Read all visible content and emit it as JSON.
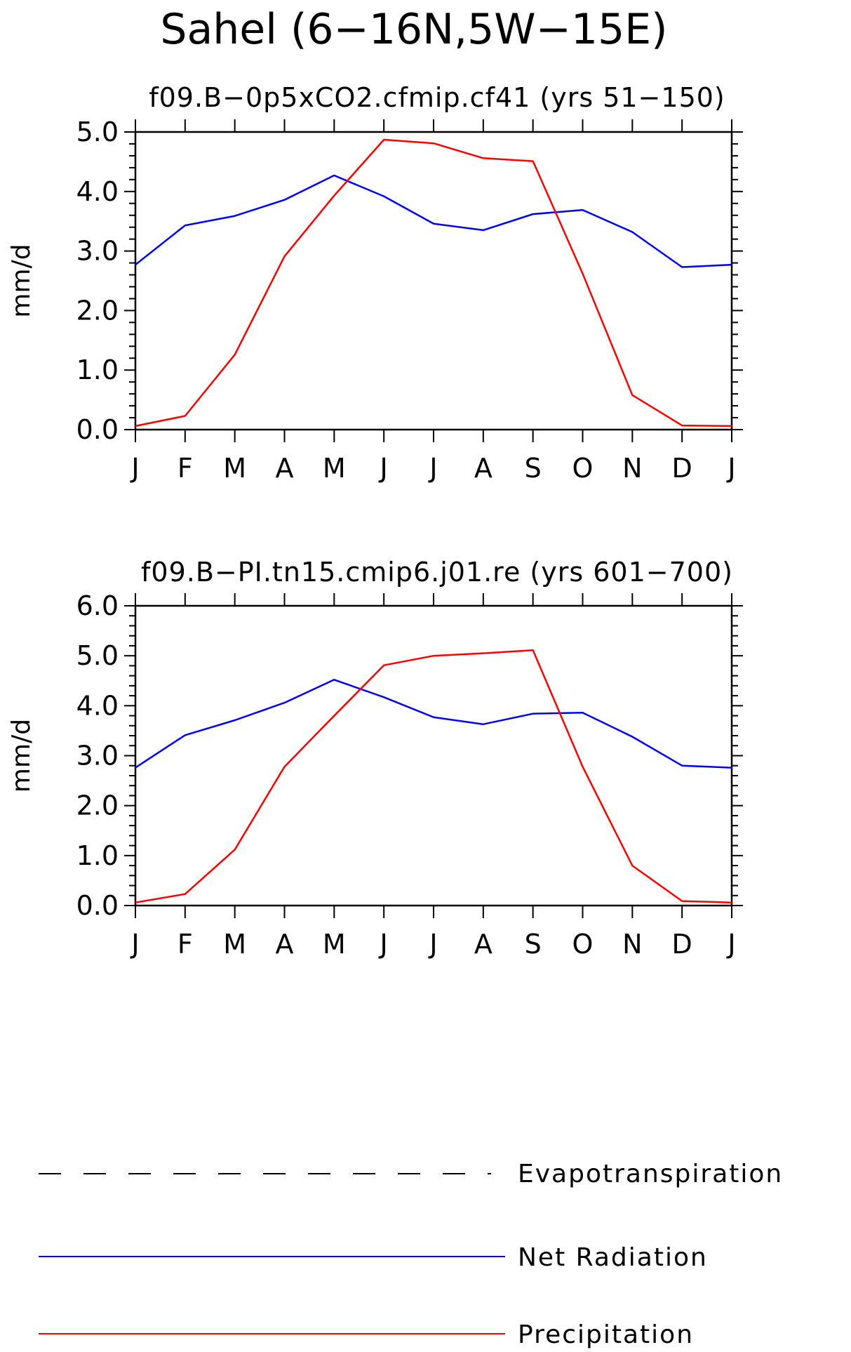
{
  "figure": {
    "title": "Sahel (6−16N,5W−15E)"
  },
  "colors": {
    "net_radiation": "#0000ff",
    "precipitation": "#ff0000",
    "axes": "#000000"
  },
  "legend": {
    "items": [
      {
        "label": "Evapotranspiration",
        "color": "#000000",
        "style": "dashed"
      },
      {
        "label": "Net Radiation",
        "color": "#0000ff",
        "style": "solid"
      },
      {
        "label": "Precipitation",
        "color": "#ff0000",
        "style": "solid"
      }
    ]
  },
  "chart_data": [
    {
      "type": "line",
      "title": "f09.B−0p5xCO2.cfmip.cf41 (yrs 51−150)",
      "xlabel": "",
      "ylabel": "mm/d",
      "categories": [
        "J",
        "F",
        "M",
        "A",
        "M",
        "J",
        "J",
        "A",
        "S",
        "O",
        "N",
        "D",
        "J"
      ],
      "ylim": [
        0,
        5
      ],
      "yticks": [
        "0.0",
        "1.0",
        "2.0",
        "3.0",
        "4.0",
        "5.0"
      ],
      "series": [
        {
          "name": "Net Radiation",
          "color": "#0000ff",
          "values": [
            2.77,
            3.43,
            3.59,
            3.86,
            4.27,
            3.92,
            3.46,
            3.35,
            3.62,
            3.69,
            3.32,
            2.73,
            2.77
          ]
        },
        {
          "name": "Precipitation",
          "color": "#ff0000",
          "values": [
            0.06,
            0.23,
            1.26,
            2.91,
            3.93,
            4.87,
            4.81,
            4.56,
            4.51,
            2.62,
            0.58,
            0.07,
            0.06
          ]
        }
      ]
    },
    {
      "type": "line",
      "title": "f09.B−PI.tn15.cmip6.j01.re (yrs 601−700)",
      "xlabel": "",
      "ylabel": "mm/d",
      "categories": [
        "J",
        "F",
        "M",
        "A",
        "M",
        "J",
        "J",
        "A",
        "S",
        "O",
        "N",
        "D",
        "J"
      ],
      "ylim": [
        0,
        6
      ],
      "yticks": [
        "0.0",
        "1.0",
        "2.0",
        "3.0",
        "4.0",
        "5.0",
        "6.0"
      ],
      "series": [
        {
          "name": "Net Radiation",
          "color": "#0000ff",
          "values": [
            2.76,
            3.41,
            3.71,
            4.06,
            4.52,
            4.17,
            3.77,
            3.63,
            3.84,
            3.86,
            3.38,
            2.8,
            2.76
          ]
        },
        {
          "name": "Precipitation",
          "color": "#ff0000",
          "values": [
            0.06,
            0.23,
            1.12,
            2.78,
            3.8,
            4.81,
            5.0,
            5.05,
            5.11,
            2.78,
            0.8,
            0.09,
            0.06
          ]
        }
      ]
    }
  ]
}
